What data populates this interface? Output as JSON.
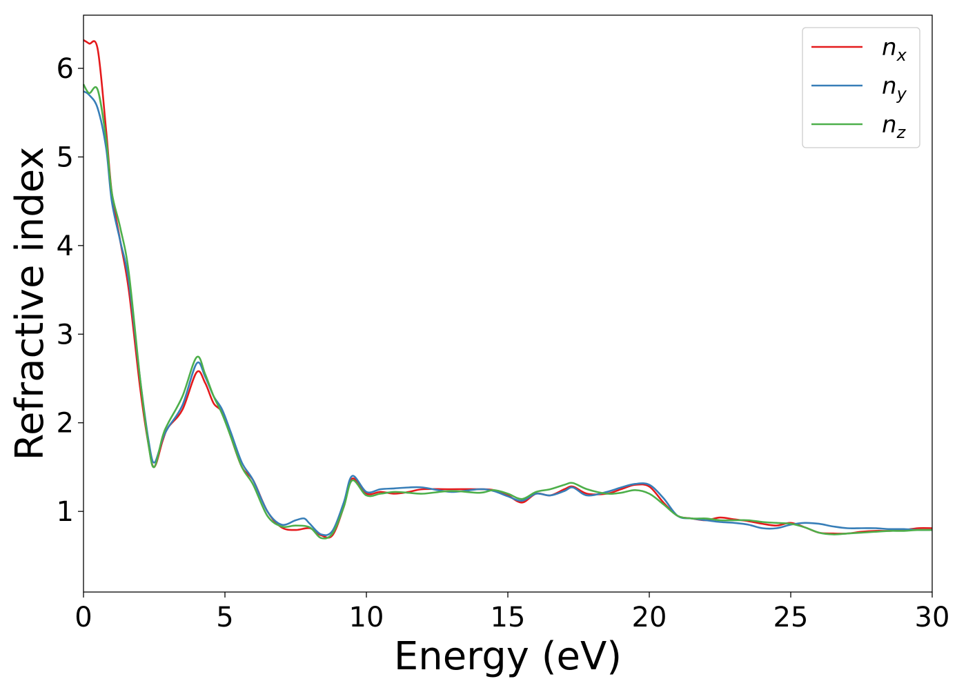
{
  "chart_data": {
    "type": "line",
    "title": "",
    "xlabel": "Energy (eV)",
    "ylabel": "Refractive index",
    "xlim": [
      0,
      30
    ],
    "ylim": [
      0.09,
      6.6
    ],
    "xticks": [
      0,
      5,
      10,
      15,
      20,
      25,
      30
    ],
    "yticks": [
      1,
      2,
      3,
      4,
      5,
      6
    ],
    "grid": false,
    "legend_position": "top-right",
    "series": [
      {
        "name": "n_x",
        "label_main": "n",
        "label_sub": "x",
        "color": "#e41a1c",
        "x": [
          0,
          0.2,
          0.5,
          0.8,
          1.0,
          1.3,
          1.6,
          2.0,
          2.3,
          2.5,
          2.8,
          3.0,
          3.5,
          4.0,
          4.3,
          4.6,
          4.9,
          5.2,
          5.6,
          6.0,
          6.5,
          7.0,
          7.5,
          8.0,
          8.4,
          8.8,
          9.2,
          9.5,
          10.0,
          10.5,
          11.0,
          11.5,
          12.0,
          13.0,
          14.0,
          14.5,
          15.0,
          15.5,
          16.0,
          16.5,
          17.0,
          17.3,
          17.8,
          18.5,
          19.0,
          19.5,
          20.0,
          20.5,
          21.0,
          21.5,
          22.0,
          22.5,
          23.0,
          23.5,
          24.0,
          24.5,
          25.0,
          25.5,
          26.0,
          26.5,
          27.0,
          27.5,
          28.0,
          28.5,
          29.0,
          29.5,
          30.0
        ],
        "y": [
          6.32,
          6.28,
          6.22,
          5.3,
          4.6,
          4.05,
          3.5,
          2.4,
          1.75,
          1.5,
          1.8,
          1.95,
          2.15,
          2.57,
          2.45,
          2.22,
          2.12,
          1.85,
          1.5,
          1.35,
          1.0,
          0.82,
          0.79,
          0.81,
          0.73,
          0.73,
          1.05,
          1.37,
          1.2,
          1.22,
          1.2,
          1.22,
          1.25,
          1.25,
          1.25,
          1.24,
          1.18,
          1.1,
          1.2,
          1.18,
          1.25,
          1.28,
          1.2,
          1.2,
          1.25,
          1.3,
          1.28,
          1.1,
          0.95,
          0.92,
          0.9,
          0.93,
          0.91,
          0.89,
          0.86,
          0.84,
          0.87,
          0.82,
          0.76,
          0.75,
          0.75,
          0.77,
          0.78,
          0.78,
          0.79,
          0.81,
          0.81
        ]
      },
      {
        "name": "n_y",
        "label_main": "n",
        "label_sub": "y",
        "color": "#377eb8",
        "x": [
          0,
          0.2,
          0.5,
          0.8,
          1.0,
          1.3,
          1.6,
          2.0,
          2.3,
          2.5,
          2.8,
          3.0,
          3.5,
          4.0,
          4.3,
          4.6,
          4.9,
          5.2,
          5.6,
          6.0,
          6.5,
          7.0,
          7.5,
          7.8,
          8.0,
          8.4,
          8.8,
          9.2,
          9.5,
          10.0,
          10.5,
          11.0,
          11.5,
          12.0,
          13.0,
          14.0,
          14.5,
          15.0,
          15.5,
          16.0,
          16.5,
          17.0,
          17.3,
          17.8,
          18.5,
          19.0,
          19.5,
          20.0,
          20.5,
          21.0,
          21.5,
          22.0,
          22.5,
          23.0,
          23.5,
          24.0,
          24.5,
          25.0,
          25.5,
          26.0,
          26.5,
          27.0,
          27.5,
          28.0,
          28.5,
          29.0,
          29.5,
          30.0
        ],
        "y": [
          5.74,
          5.7,
          5.55,
          5.1,
          4.5,
          4.05,
          3.6,
          2.5,
          1.8,
          1.55,
          1.82,
          1.95,
          2.2,
          2.67,
          2.52,
          2.3,
          2.15,
          1.9,
          1.55,
          1.35,
          1.0,
          0.85,
          0.9,
          0.92,
          0.86,
          0.74,
          0.78,
          1.1,
          1.4,
          1.22,
          1.25,
          1.26,
          1.27,
          1.27,
          1.22,
          1.25,
          1.23,
          1.17,
          1.12,
          1.2,
          1.18,
          1.23,
          1.27,
          1.18,
          1.22,
          1.27,
          1.31,
          1.3,
          1.15,
          0.95,
          0.92,
          0.9,
          0.88,
          0.87,
          0.85,
          0.81,
          0.81,
          0.85,
          0.87,
          0.86,
          0.83,
          0.81,
          0.81,
          0.81,
          0.8,
          0.8,
          0.79,
          0.79
        ]
      },
      {
        "name": "n_z",
        "label_main": "n",
        "label_sub": "z",
        "color": "#4daf4a",
        "x": [
          0,
          0.2,
          0.5,
          0.8,
          1.0,
          1.3,
          1.6,
          2.0,
          2.3,
          2.5,
          2.8,
          3.0,
          3.5,
          4.0,
          4.3,
          4.6,
          4.9,
          5.2,
          5.6,
          6.0,
          6.5,
          7.0,
          7.5,
          8.0,
          8.4,
          8.8,
          9.2,
          9.5,
          10.0,
          10.5,
          11.0,
          11.5,
          12.0,
          13.0,
          14.0,
          14.5,
          15.0,
          15.5,
          16.0,
          16.5,
          17.0,
          17.3,
          17.8,
          18.5,
          19.0,
          19.5,
          20.0,
          20.5,
          21.0,
          21.5,
          22.0,
          22.5,
          23.0,
          23.5,
          24.0,
          24.5,
          25.0,
          25.5,
          26.0,
          26.5,
          27.0,
          27.5,
          28.0,
          28.5,
          29.0,
          29.5,
          30.0
        ],
        "y": [
          5.82,
          5.72,
          5.76,
          5.2,
          4.6,
          4.2,
          3.7,
          2.5,
          1.75,
          1.5,
          1.85,
          2.0,
          2.3,
          2.74,
          2.55,
          2.3,
          2.1,
          1.85,
          1.5,
          1.3,
          0.95,
          0.83,
          0.84,
          0.82,
          0.7,
          0.75,
          1.05,
          1.35,
          1.18,
          1.2,
          1.22,
          1.21,
          1.2,
          1.23,
          1.21,
          1.24,
          1.2,
          1.14,
          1.22,
          1.25,
          1.3,
          1.32,
          1.25,
          1.2,
          1.21,
          1.24,
          1.2,
          1.08,
          0.95,
          0.92,
          0.92,
          0.9,
          0.9,
          0.9,
          0.88,
          0.87,
          0.86,
          0.82,
          0.76,
          0.74,
          0.75,
          0.76,
          0.77,
          0.78,
          0.78,
          0.79,
          0.79
        ]
      }
    ]
  }
}
